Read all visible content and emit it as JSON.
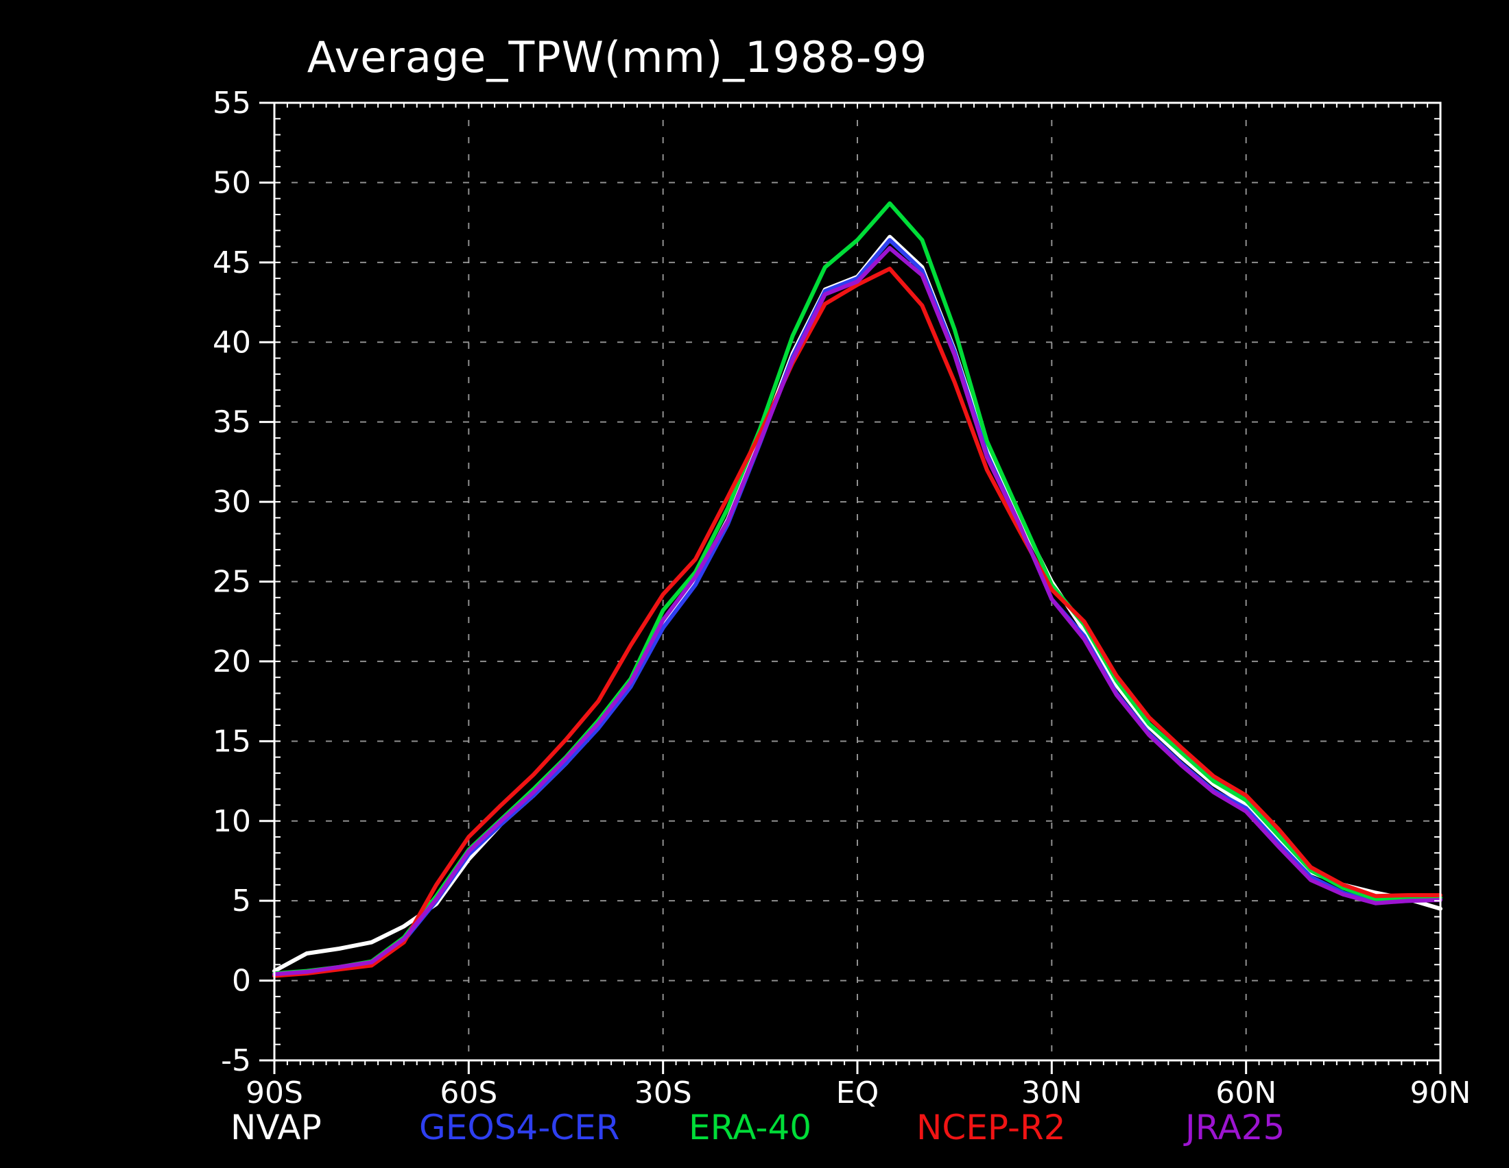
{
  "title": "Average_TPW(mm)_1988-99",
  "colors": {
    "background": "#000000",
    "axis": "#ffffff",
    "grid": "#aaaaaa"
  },
  "axes": {
    "x_tick_labels": [
      "90S",
      "60S",
      "30S",
      "EQ",
      "30N",
      "60N",
      "90N"
    ],
    "x_tick_lats": [
      -90,
      -60,
      -30,
      0,
      30,
      60,
      90
    ],
    "y_tick_labels": [
      "-5",
      "0",
      "5",
      "10",
      "15",
      "20",
      "25",
      "30",
      "35",
      "40",
      "45",
      "50",
      "55"
    ],
    "y_tick_values": [
      -5,
      0,
      5,
      10,
      15,
      20,
      25,
      30,
      35,
      40,
      45,
      50,
      55
    ],
    "grid_x_lats": [
      -60,
      -30,
      0,
      30,
      60
    ],
    "grid_y_values": [
      0,
      5,
      10,
      15,
      20,
      25,
      30,
      35,
      40,
      45,
      50
    ]
  },
  "legend": [
    {
      "label": "NVAP",
      "color": "#ffffff"
    },
    {
      "label": "GEOS4-CER",
      "color": "#2e3ff0"
    },
    {
      "label": "ERA-40",
      "color": "#00dd38"
    },
    {
      "label": "NCEP-R2",
      "color": "#f01414"
    },
    {
      "label": "JRA25",
      "color": "#9c14d0"
    }
  ],
  "chart_data": {
    "type": "line",
    "title": "Average_TPW(mm)_1988-99",
    "xlabel": "",
    "ylabel": "",
    "ylim": [
      -5,
      55
    ],
    "xlim_degrees_lat": [
      -90,
      90
    ],
    "grid": "dotted",
    "legend_position": "bottom",
    "x": [
      -90,
      -85,
      -80,
      -75,
      -70,
      -65,
      -60,
      -55,
      -50,
      -45,
      -40,
      -35,
      -30,
      -25,
      -20,
      -15,
      -10,
      -5,
      0,
      5,
      10,
      15,
      20,
      25,
      30,
      35,
      40,
      45,
      50,
      55,
      60,
      65,
      70,
      75,
      80,
      85,
      90
    ],
    "series": [
      {
        "name": "NVAP",
        "color": "#ffffff",
        "values": [
          0.6,
          1.7,
          2.0,
          2.4,
          3.4,
          4.8,
          7.6,
          9.8,
          11.6,
          13.6,
          15.9,
          18.6,
          22.4,
          25.1,
          28.9,
          33.9,
          39.3,
          43.3,
          44.1,
          46.6,
          44.7,
          39.5,
          33.3,
          29.0,
          25.0,
          21.9,
          18.5,
          15.9,
          14.0,
          12.3,
          11.0,
          8.9,
          6.8,
          6.0,
          5.5,
          5.1,
          4.5
        ]
      },
      {
        "name": "GEOS4-CER",
        "color": "#2e3ff0",
        "values": [
          0.3,
          0.5,
          0.75,
          1.05,
          2.5,
          5.0,
          7.9,
          9.8,
          11.6,
          13.6,
          15.8,
          18.4,
          22.1,
          24.8,
          28.6,
          33.7,
          39.1,
          43.2,
          44.0,
          46.4,
          44.5,
          39.4,
          33.0,
          28.6,
          23.9,
          21.6,
          18.0,
          15.5,
          13.6,
          11.9,
          10.8,
          8.6,
          6.5,
          5.5,
          4.9,
          5.0,
          5.1
        ]
      },
      {
        "name": "ERA-40",
        "color": "#00dd38",
        "values": [
          0.45,
          0.6,
          0.85,
          1.2,
          2.7,
          5.3,
          8.2,
          10.1,
          12.0,
          14.0,
          16.3,
          18.9,
          23.2,
          25.6,
          29.6,
          34.6,
          40.4,
          44.7,
          46.4,
          48.7,
          46.4,
          40.8,
          33.8,
          29.3,
          24.8,
          22.3,
          18.8,
          16.1,
          14.3,
          12.5,
          11.3,
          9.1,
          6.9,
          5.8,
          5.1,
          5.15,
          5.2
        ]
      },
      {
        "name": "NCEP-R2",
        "color": "#f01414",
        "values": [
          0.3,
          0.45,
          0.7,
          0.95,
          2.4,
          6.0,
          9.0,
          11.0,
          12.9,
          15.1,
          17.5,
          21.0,
          24.2,
          26.4,
          30.3,
          34.3,
          38.7,
          42.4,
          43.6,
          44.6,
          42.3,
          37.5,
          32.0,
          28.2,
          24.5,
          22.5,
          19.1,
          16.5,
          14.6,
          12.8,
          11.6,
          9.5,
          7.1,
          6.0,
          5.3,
          5.35,
          5.35
        ]
      },
      {
        "name": "JRA25",
        "color": "#9c14d0",
        "values": [
          0.4,
          0.55,
          0.85,
          1.15,
          2.6,
          5.1,
          8.1,
          10.0,
          11.8,
          13.9,
          16.1,
          18.7,
          22.6,
          25.3,
          28.8,
          33.8,
          38.9,
          43.0,
          43.8,
          45.9,
          44.2,
          39.2,
          32.8,
          28.6,
          23.9,
          21.4,
          17.9,
          15.4,
          13.5,
          11.8,
          10.6,
          8.4,
          6.3,
          5.4,
          4.85,
          5.0,
          5.05
        ]
      }
    ]
  }
}
